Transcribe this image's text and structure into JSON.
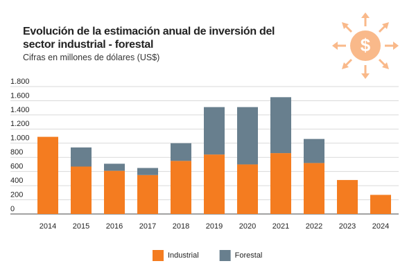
{
  "chart_data": {
    "type": "stacked_bar",
    "title": "Evolución de la estimación anual de inversión del sector industrial - forestal",
    "subtitle": "Cifras en millones de dólares (US$)",
    "categories": [
      "2014",
      "2015",
      "2016",
      "2017",
      "2018",
      "2019",
      "2020",
      "2021",
      "2022",
      "2023",
      "2024"
    ],
    "series": [
      {
        "name": "Industrial",
        "color": "#f47c20",
        "values": [
          1090,
          670,
          610,
          550,
          750,
          840,
          700,
          860,
          720,
          480,
          270
        ]
      },
      {
        "name": "Forestal",
        "color": "#687f8e",
        "values": [
          null,
          270,
          100,
          100,
          250,
          670,
          810,
          790,
          340,
          null,
          null
        ]
      }
    ],
    "ylim": [
      0,
      1800
    ],
    "yticks": [
      0,
      200,
      400,
      600,
      800,
      {
        "value": 1000,
        "label": "1.000"
      },
      {
        "value": 1200,
        "label": "1.200"
      },
      {
        "value": 1400,
        "label": "1.400"
      },
      {
        "value": 1600,
        "label": "1.600"
      },
      {
        "value": 1800,
        "label": "1.800"
      }
    ],
    "grid": true,
    "legend": "bottom"
  }
}
